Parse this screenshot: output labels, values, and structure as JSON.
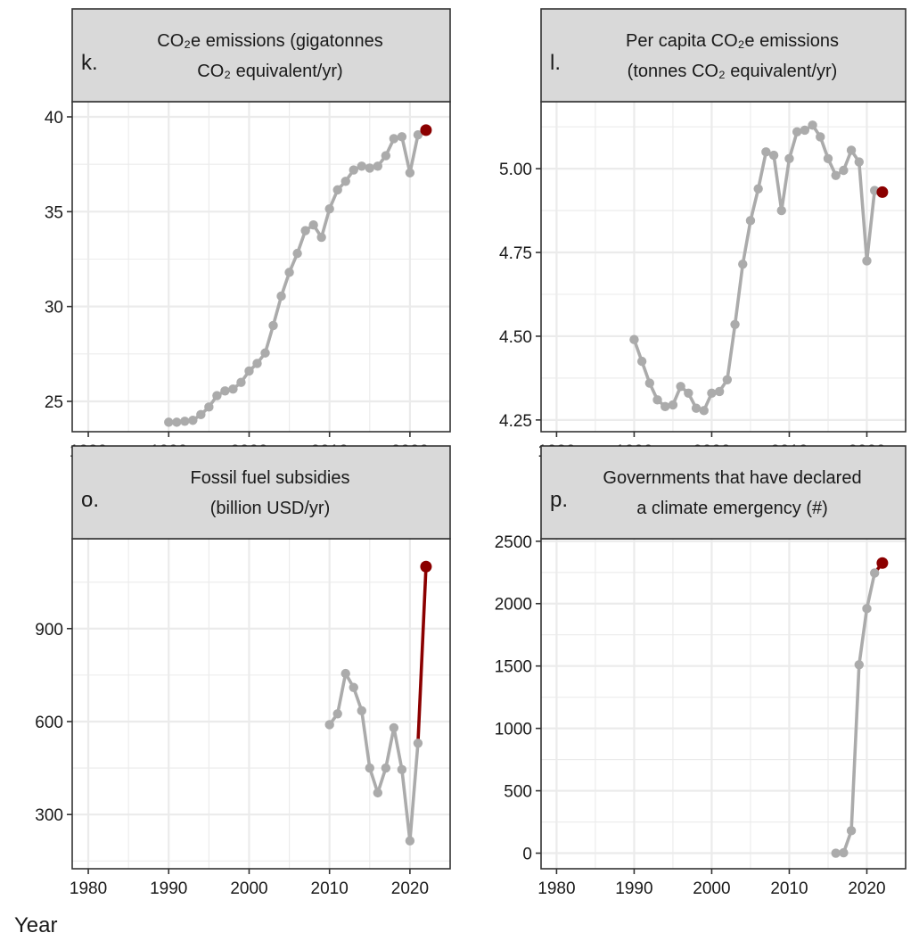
{
  "x_axis_title": "Year",
  "colors": {
    "line": "#ababab",
    "highlight": "#8b0000",
    "strip": "#d9d9d9",
    "grid": "#ebebeb",
    "frame": "#333333"
  },
  "chart_data": [
    {
      "id": "k",
      "type": "line",
      "panel_letter": "k.",
      "title_line1": "CO₂e emissions (gigatonnes",
      "title_line2": "CO₂ equivalent/yr)",
      "xlim": [
        1978,
        2025
      ],
      "ylim": [
        23.4,
        40.8
      ],
      "x_ticks": [
        1980,
        1990,
        2000,
        2010,
        2020
      ],
      "y_ticks": [
        25,
        30,
        35,
        40
      ],
      "y_tick_labels": [
        "25",
        "30",
        "35",
        "40"
      ],
      "x": [
        1990,
        1991,
        1992,
        1993,
        1994,
        1995,
        1996,
        1997,
        1998,
        1999,
        2000,
        2001,
        2002,
        2003,
        2004,
        2005,
        2006,
        2007,
        2008,
        2009,
        2010,
        2011,
        2012,
        2013,
        2014,
        2015,
        2016,
        2017,
        2018,
        2019,
        2020,
        2021
      ],
      "y": [
        23.9,
        23.9,
        23.95,
        24.0,
        24.3,
        24.7,
        25.3,
        25.55,
        25.65,
        26.0,
        26.6,
        27.0,
        27.55,
        29.0,
        30.55,
        31.8,
        32.8,
        34.0,
        34.3,
        33.65,
        35.15,
        36.15,
        36.6,
        37.2,
        37.4,
        37.3,
        37.4,
        37.95,
        38.85,
        38.95,
        37.05,
        39.05
      ],
      "highlight": {
        "x": 2022,
        "y": 39.3
      }
    },
    {
      "id": "l",
      "type": "line",
      "panel_letter": "l.",
      "title_line1": "Per capita CO₂e emissions",
      "title_line2": "(tonnes CO₂ equivalent/yr)",
      "xlim": [
        1978,
        2025
      ],
      "ylim": [
        4.215,
        5.2
      ],
      "x_ticks": [
        1980,
        1990,
        2000,
        2010,
        2020
      ],
      "y_ticks": [
        4.25,
        4.5,
        4.75,
        5.0
      ],
      "y_tick_labels": [
        "4.25",
        "4.50",
        "4.75",
        "5.00"
      ],
      "x": [
        1990,
        1991,
        1992,
        1993,
        1994,
        1995,
        1996,
        1997,
        1998,
        1999,
        2000,
        2001,
        2002,
        2003,
        2004,
        2005,
        2006,
        2007,
        2008,
        2009,
        2010,
        2011,
        2012,
        2013,
        2014,
        2015,
        2016,
        2017,
        2018,
        2019,
        2020,
        2021
      ],
      "y": [
        4.49,
        4.425,
        4.36,
        4.31,
        4.29,
        4.295,
        4.35,
        4.33,
        4.285,
        4.278,
        4.33,
        4.335,
        4.37,
        4.535,
        4.715,
        4.845,
        4.94,
        5.05,
        5.04,
        4.875,
        5.03,
        5.11,
        5.115,
        5.13,
        5.095,
        5.03,
        4.98,
        4.995,
        5.055,
        5.02,
        4.725,
        4.935
      ],
      "highlight": {
        "x": 2022,
        "y": 4.93
      }
    },
    {
      "id": "o",
      "type": "line",
      "panel_letter": "o.",
      "title_line1": "Fossil fuel subsidies",
      "title_line2": "(billion USD/yr)",
      "xlim": [
        1978,
        2025
      ],
      "ylim": [
        125,
        1190
      ],
      "x_ticks": [
        1980,
        1990,
        2000,
        2010,
        2020
      ],
      "y_ticks": [
        300,
        600,
        900
      ],
      "y_tick_labels": [
        "300",
        "600",
        "900"
      ],
      "x": [
        2010,
        2011,
        2012,
        2013,
        2014,
        2015,
        2016,
        2017,
        2018,
        2019,
        2020,
        2021
      ],
      "y": [
        590,
        625,
        755,
        710,
        635,
        450,
        370,
        450,
        580,
        445,
        215,
        530
      ],
      "highlight": {
        "x": 2022,
        "y": 1100
      }
    },
    {
      "id": "p",
      "type": "line",
      "panel_letter": "p.",
      "title_line1": "Governments that have declared",
      "title_line2": "a climate emergency (#)",
      "xlim": [
        1978,
        2025
      ],
      "ylim": [
        -125,
        2520
      ],
      "x_ticks": [
        1980,
        1990,
        2000,
        2010,
        2020
      ],
      "y_ticks": [
        0,
        500,
        1000,
        1500,
        2000,
        2500
      ],
      "y_tick_labels": [
        "0",
        "500",
        "1000",
        "1500",
        "2000",
        "2500"
      ],
      "x": [
        2016,
        2017,
        2018,
        2019,
        2020,
        2021
      ],
      "y": [
        0,
        3,
        180,
        1510,
        1960,
        2245
      ],
      "highlight": {
        "x": 2022,
        "y": 2325
      }
    }
  ]
}
